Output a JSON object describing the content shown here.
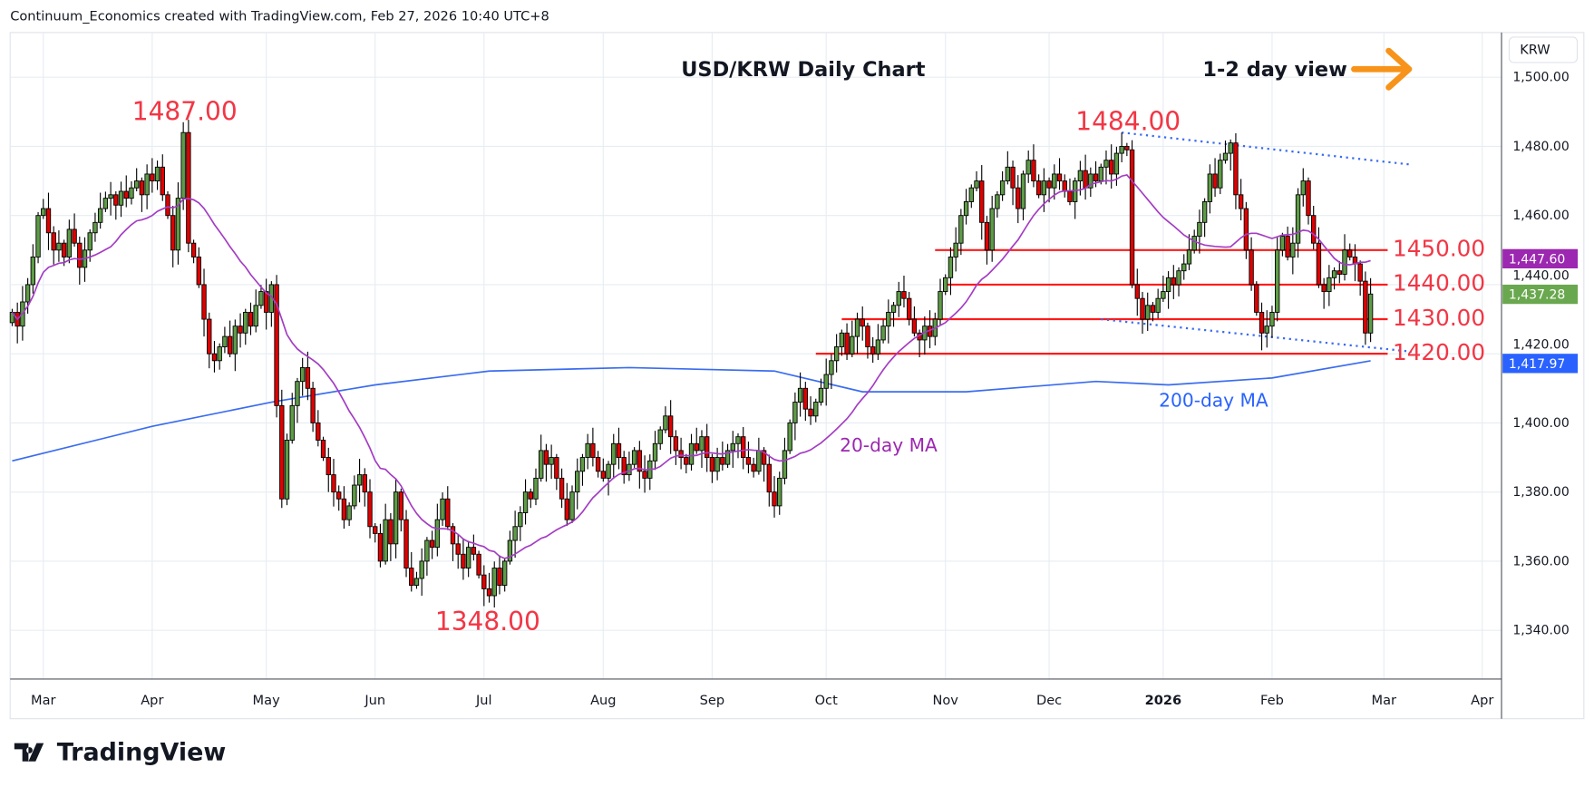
{
  "header": {
    "attribution": "Continuum_Economics created with TradingView.com, Feb 27, 2026 10:40 UTC+8",
    "title": "USD/KRW Daily Chart",
    "view": "1-2 day view",
    "view_arrow_icon": "right-arrow-icon",
    "currency": "KRW"
  },
  "branding": {
    "logo_text": "TradingView"
  },
  "colors": {
    "up": "#5e9b47",
    "down": "#e00000",
    "ma20": "#a43cc4",
    "ma200": "#3a6cf0",
    "level": "#ff1a1a",
    "trend": "#3a6cf0",
    "arrow": "#f7931a"
  },
  "chart_data": {
    "type": "candlestick",
    "title": "USD/KRW Daily Chart",
    "ylabel": "KRW",
    "ylim": [
      1320,
      1512
    ],
    "y_ticks": [
      "1,500.00",
      "1,480.00",
      "1,460.00",
      "1,440.00",
      "1,420.00",
      "1,400.00",
      "1,380.00",
      "1,360.00",
      "1,340.00"
    ],
    "y_tick_values": [
      1500,
      1480,
      1460,
      1440,
      1420,
      1400,
      1380,
      1360,
      1340
    ],
    "x_ticks": [
      {
        "label": "Mar",
        "bar": 6
      },
      {
        "label": "Apr",
        "bar": 27
      },
      {
        "label": "May",
        "bar": 49
      },
      {
        "label": "Jun",
        "bar": 70
      },
      {
        "label": "Jul",
        "bar": 91
      },
      {
        "label": "Aug",
        "bar": 114
      },
      {
        "label": "Sep",
        "bar": 135
      },
      {
        "label": "Oct",
        "bar": 157
      },
      {
        "label": "Nov",
        "bar": 180
      },
      {
        "label": "Dec",
        "bar": 200
      },
      {
        "label": "2026",
        "bar": 222,
        "bold": true
      },
      {
        "label": "Feb",
        "bar": 243
      },
      {
        "label": "Mar",
        "bar": 263
      },
      {
        "label": "Apr",
        "bar": 285
      }
    ],
    "closes": [
      1432,
      1428,
      1435,
      1440,
      1448,
      1460,
      1462,
      1455,
      1450,
      1452,
      1448,
      1456,
      1452,
      1445,
      1450,
      1455,
      1458,
      1462,
      1465,
      1466,
      1463,
      1467,
      1465,
      1468,
      1470,
      1466,
      1472,
      1470,
      1474,
      1466,
      1460,
      1450,
      1465,
      1484,
      1452,
      1448,
      1440,
      1430,
      1420,
      1418,
      1422,
      1425,
      1420,
      1428,
      1426,
      1432,
      1428,
      1434,
      1438,
      1432,
      1440,
      1405,
      1378,
      1395,
      1405,
      1412,
      1416,
      1410,
      1400,
      1395,
      1390,
      1385,
      1380,
      1378,
      1372,
      1376,
      1382,
      1385,
      1380,
      1370,
      1368,
      1360,
      1372,
      1365,
      1380,
      1372,
      1358,
      1353,
      1355,
      1360,
      1366,
      1364,
      1372,
      1378,
      1370,
      1365,
      1362,
      1358,
      1364,
      1362,
      1356,
      1352,
      1350,
      1358,
      1353,
      1360,
      1366,
      1370,
      1374,
      1380,
      1378,
      1384,
      1392,
      1388,
      1390,
      1384,
      1378,
      1372,
      1380,
      1386,
      1390,
      1394,
      1390,
      1386,
      1384,
      1388,
      1394,
      1390,
      1385,
      1388,
      1392,
      1386,
      1384,
      1389,
      1394,
      1398,
      1402,
      1396,
      1392,
      1390,
      1388,
      1394,
      1392,
      1396,
      1390,
      1386,
      1390,
      1388,
      1392,
      1394,
      1396,
      1390,
      1388,
      1386,
      1392,
      1388,
      1380,
      1376,
      1384,
      1392,
      1400,
      1406,
      1410,
      1404,
      1402,
      1406,
      1410,
      1414,
      1418,
      1422,
      1426,
      1420,
      1425,
      1430,
      1428,
      1422,
      1420,
      1424,
      1428,
      1432,
      1434,
      1438,
      1436,
      1430,
      1426,
      1424,
      1428,
      1425,
      1430,
      1438,
      1442,
      1448,
      1452,
      1460,
      1464,
      1468,
      1470,
      1458,
      1450,
      1462,
      1466,
      1470,
      1474,
      1468,
      1462,
      1472,
      1476,
      1470,
      1466,
      1470,
      1468,
      1472,
      1470,
      1467,
      1464,
      1470,
      1473,
      1468,
      1472,
      1470,
      1474,
      1476,
      1472,
      1478,
      1480,
      1479,
      1440,
      1436,
      1430,
      1434,
      1432,
      1436,
      1438,
      1442,
      1440,
      1444,
      1446,
      1450,
      1454,
      1458,
      1464,
      1472,
      1468,
      1476,
      1478,
      1481,
      1466,
      1462,
      1450,
      1440,
      1432,
      1426,
      1428,
      1432,
      1450,
      1454,
      1448,
      1452,
      1466,
      1470,
      1460,
      1452,
      1440,
      1438,
      1442,
      1444,
      1443,
      1450,
      1448,
      1446,
      1441,
      1426,
      1437.28
    ],
    "extremes": [
      {
        "label": "1487.00",
        "price": 1487,
        "bar": 33,
        "kind": "high"
      },
      {
        "label": "1484.00",
        "price": 1484,
        "bar": 214,
        "kind": "high"
      },
      {
        "label": "1348.00",
        "price": 1348,
        "bar": 92,
        "kind": "low"
      }
    ],
    "ma20": {
      "label": "20-day MA",
      "last": "1,447.60",
      "period": 20
    },
    "ma200": {
      "label": "200-day MA",
      "last": "1,417.97",
      "points": [
        [
          0,
          1389
        ],
        [
          27,
          1399
        ],
        [
          50,
          1406
        ],
        [
          70,
          1411
        ],
        [
          92,
          1415
        ],
        [
          119,
          1416
        ],
        [
          147,
          1415
        ],
        [
          164,
          1409
        ],
        [
          184,
          1409
        ],
        [
          209,
          1412
        ],
        [
          223,
          1411
        ],
        [
          243,
          1413
        ],
        [
          262,
          1417.97
        ]
      ]
    },
    "last_price": "1,437.28",
    "levels": [
      {
        "label": "1450.00",
        "price": 1450,
        "from_bar": 178
      },
      {
        "label": "1440.00",
        "price": 1440,
        "from_bar": 180
      },
      {
        "label": "1430.00",
        "price": 1430,
        "from_bar": 160
      },
      {
        "label": "1420.00",
        "price": 1420,
        "from_bar": 155
      }
    ],
    "trendlines": [
      {
        "from": [
          214,
          1484
        ],
        "to": [
          266,
          1474.7
        ]
      },
      {
        "from": [
          210,
          1430
        ],
        "to": [
          266,
          1420.6
        ]
      }
    ]
  }
}
